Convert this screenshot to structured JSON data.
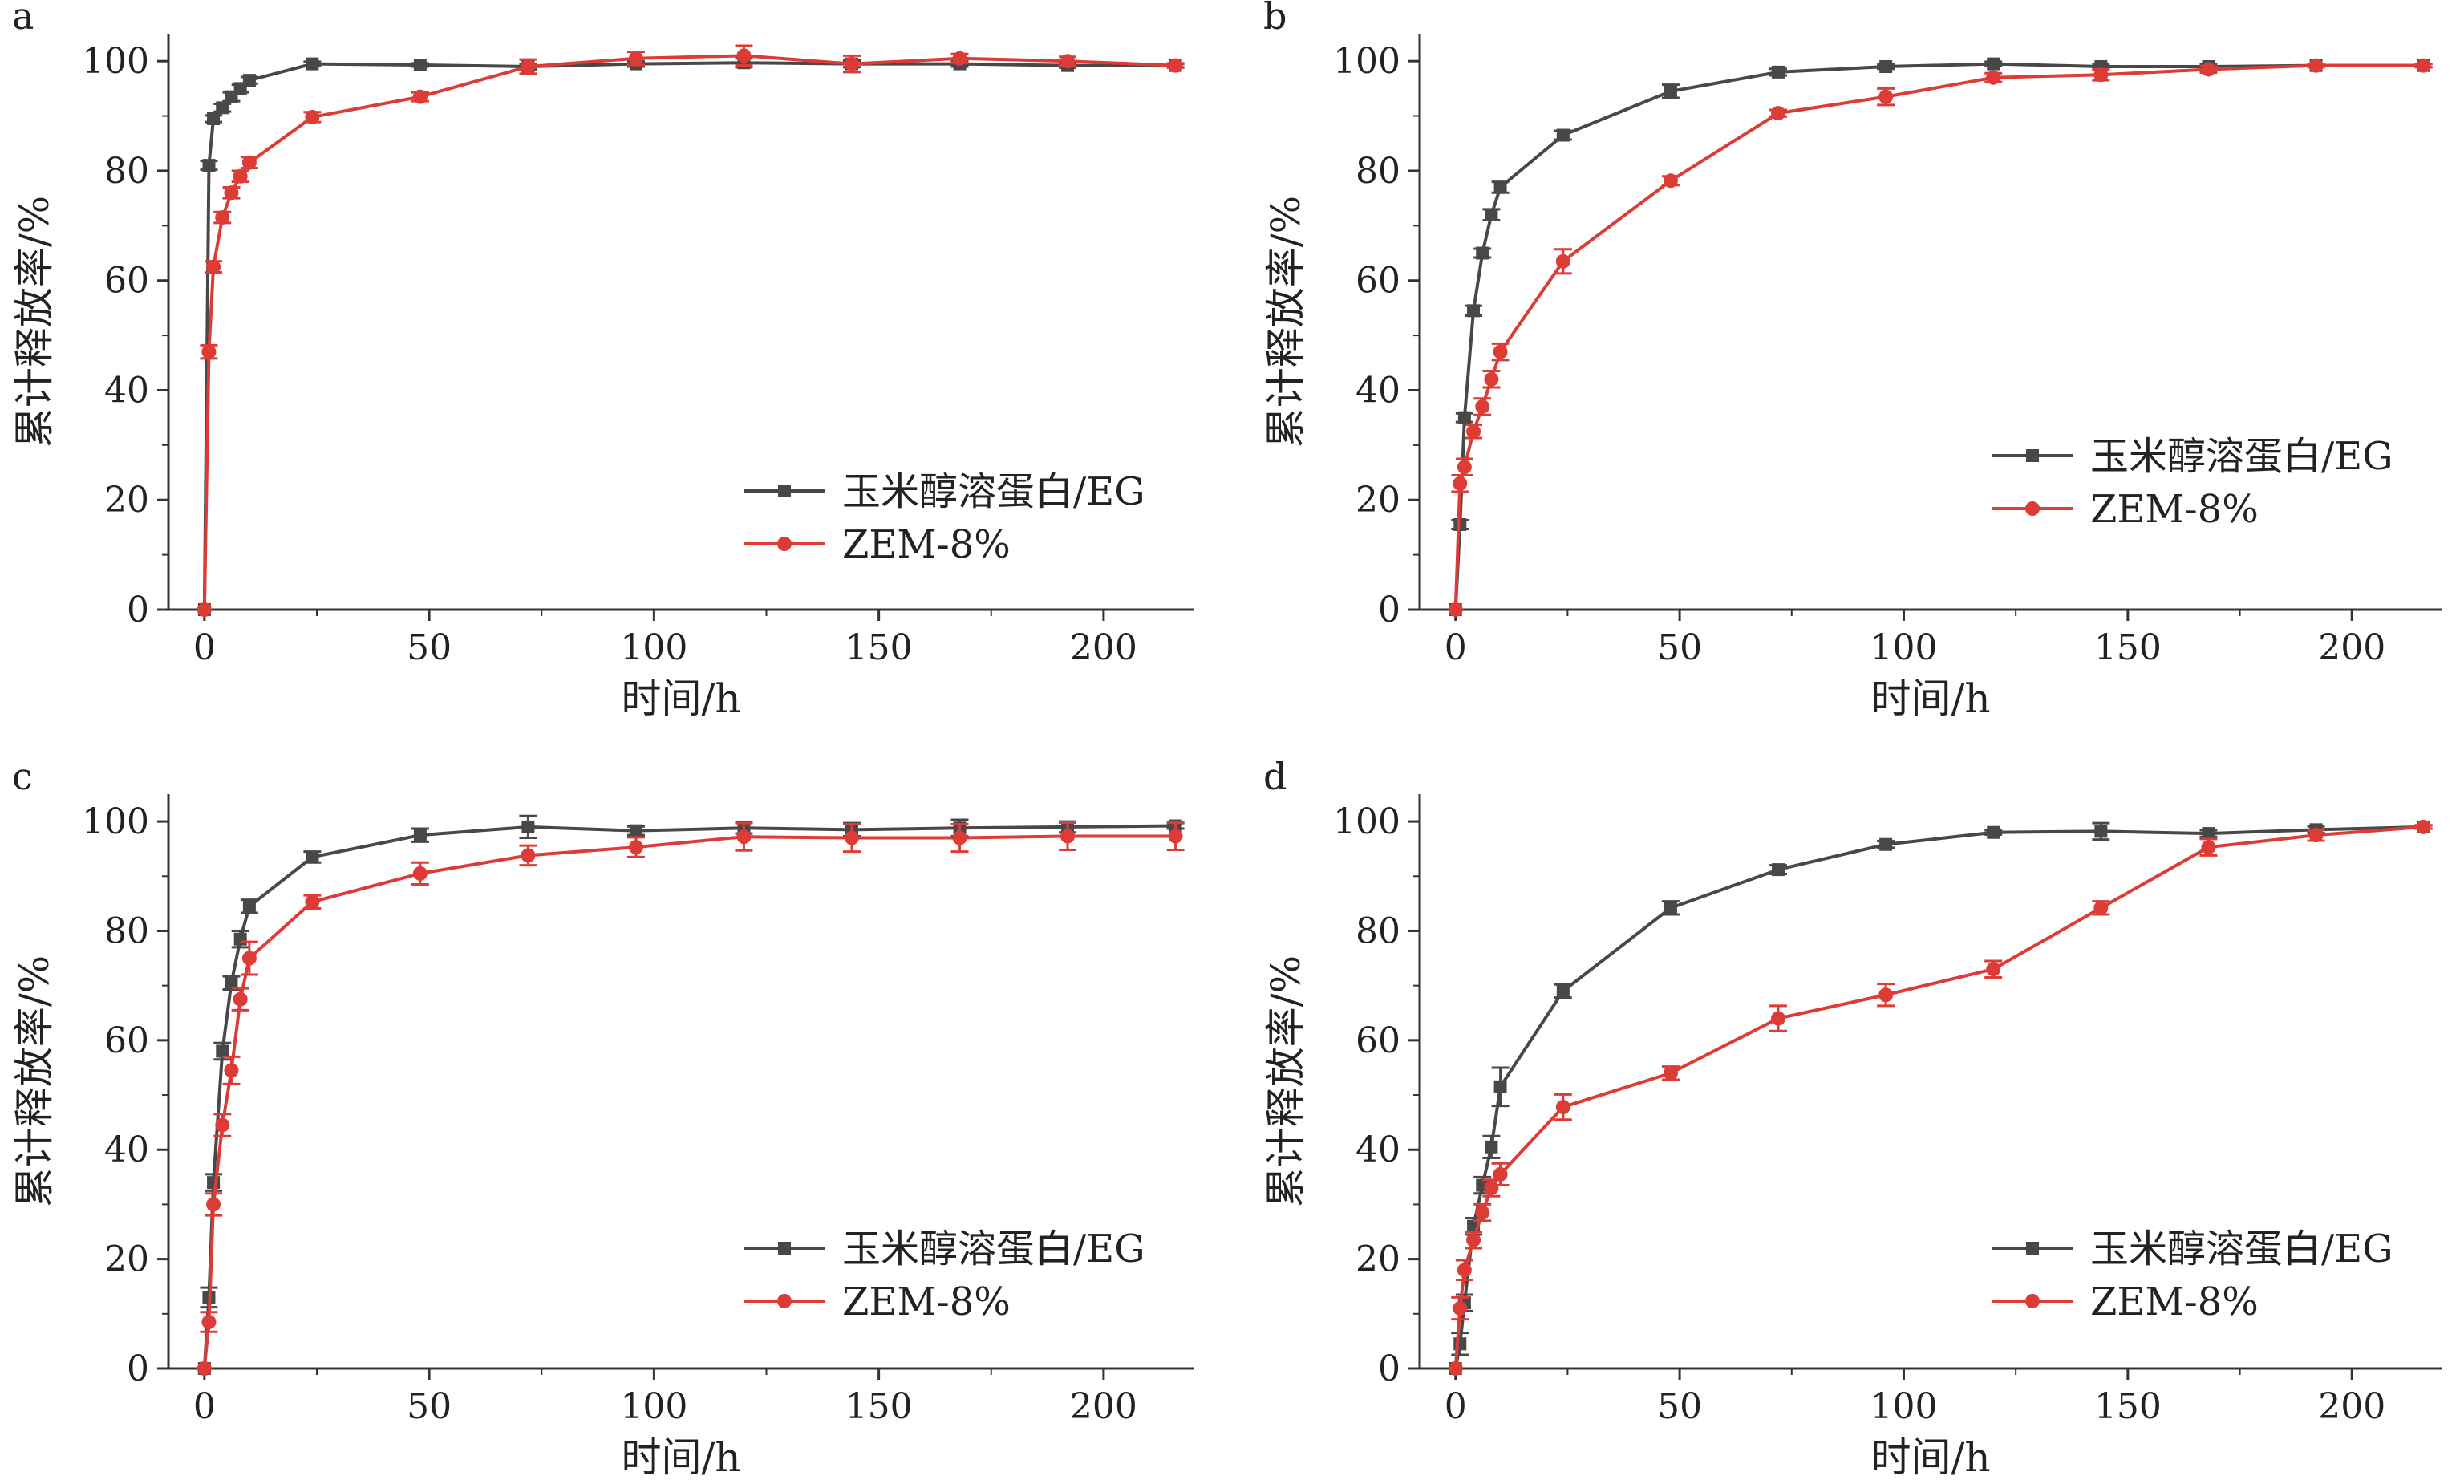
{
  "colors": {
    "series1": "#484848",
    "series2": "#dd3b36",
    "axis": "#333333"
  },
  "chart_data": [
    {
      "panel": "a",
      "type": "line",
      "xlabel": "时间/h",
      "ylabel": "累计释放率/%",
      "xlim": [
        -8,
        220
      ],
      "ylim": [
        0,
        105
      ],
      "xticks": [
        0,
        50,
        100,
        150,
        200
      ],
      "yticks": [
        0,
        20,
        40,
        60,
        80,
        100
      ],
      "legend_position": "bottom-right",
      "series": [
        {
          "name": "玉米醇溶蛋白/EG",
          "marker": "square",
          "x": [
            0,
            1,
            2,
            4,
            6,
            8,
            10,
            24,
            48,
            72,
            96,
            120,
            144,
            168,
            192,
            216
          ],
          "y": [
            0,
            81,
            89.5,
            91.5,
            93.5,
            95,
            96.5,
            99.5,
            99.3,
            99,
            99.5,
            99.7,
            99.5,
            99.5,
            99.2,
            99.2
          ],
          "err": [
            0,
            0.8,
            0.6,
            0.7,
            0.8,
            0.7,
            0.6,
            0.4,
            0.3,
            0.5,
            0.5,
            0.8,
            0.6,
            0.5,
            0.4,
            0.3
          ]
        },
        {
          "name": "ZEM-8%",
          "marker": "circle",
          "x": [
            0,
            1,
            2,
            4,
            6,
            8,
            10,
            24,
            48,
            72,
            96,
            120,
            144,
            168,
            192,
            216
          ],
          "y": [
            0,
            47,
            62.5,
            71.5,
            76,
            79,
            81.5,
            89.8,
            93.5,
            99,
            100.5,
            101,
            99.5,
            100.5,
            100,
            99.2
          ],
          "err": [
            0,
            1.2,
            1.0,
            1.0,
            1.0,
            1.0,
            1.0,
            0.9,
            0.8,
            1.3,
            1.2,
            1.8,
            1.5,
            0.8,
            0.8,
            0.4
          ]
        }
      ]
    },
    {
      "panel": "b",
      "type": "line",
      "xlabel": "时间/h",
      "ylabel": "累计释放率/%",
      "xlim": [
        -8,
        220
      ],
      "ylim": [
        0,
        105
      ],
      "xticks": [
        0,
        50,
        100,
        150,
        200
      ],
      "yticks": [
        0,
        20,
        40,
        60,
        80,
        100
      ],
      "legend_position": "right",
      "series": [
        {
          "name": "玉米醇溶蛋白/EG",
          "marker": "square",
          "x": [
            0,
            1,
            2,
            4,
            6,
            8,
            10,
            24,
            48,
            72,
            96,
            120,
            144,
            168,
            192,
            216
          ],
          "y": [
            0,
            15.5,
            35,
            54.5,
            65,
            72,
            77,
            86.5,
            94.5,
            98,
            99,
            99.5,
            99,
            99,
            99.2,
            99.2
          ],
          "err": [
            0,
            0.8,
            0.8,
            0.9,
            0.8,
            1.0,
            1.0,
            0.8,
            1.2,
            0.6,
            0.4,
            0.4,
            0.4,
            0.4,
            0.3,
            0.3
          ]
        },
        {
          "name": "ZEM-8%",
          "marker": "circle",
          "x": [
            0,
            1,
            2,
            4,
            6,
            8,
            10,
            24,
            48,
            72,
            96,
            120,
            144,
            168,
            192,
            216
          ],
          "y": [
            0,
            23,
            26,
            32.5,
            37,
            42,
            47,
            63.5,
            78.2,
            90.5,
            93.5,
            97,
            97.5,
            98.5,
            99.2,
            99.2
          ],
          "err": [
            0,
            1.5,
            1.5,
            1.2,
            1.5,
            1.5,
            1.5,
            2.2,
            0.8,
            0.6,
            1.5,
            0.8,
            1.0,
            0.6,
            0.3,
            0.3
          ]
        }
      ]
    },
    {
      "panel": "c",
      "type": "line",
      "xlabel": "时间/h",
      "ylabel": "累计释放率/%",
      "xlim": [
        -8,
        220
      ],
      "ylim": [
        0,
        105
      ],
      "xticks": [
        0,
        50,
        100,
        150,
        200
      ],
      "yticks": [
        0,
        20,
        40,
        60,
        80,
        100
      ],
      "legend_position": "bottom-right",
      "series": [
        {
          "name": "玉米醇溶蛋白/EG",
          "marker": "square",
          "x": [
            0,
            1,
            2,
            4,
            6,
            8,
            10,
            24,
            48,
            72,
            96,
            120,
            144,
            168,
            192,
            216
          ],
          "y": [
            0,
            13,
            34,
            58,
            70.5,
            78.5,
            84.5,
            93.5,
            97.5,
            99,
            98.3,
            98.8,
            98.5,
            98.8,
            99,
            99.2
          ],
          "err": [
            0,
            1.8,
            1.5,
            1.5,
            1.2,
            1.5,
            1.2,
            1.0,
            1.2,
            2.0,
            0.8,
            1.0,
            1.2,
            1.5,
            1.0,
            0.5
          ]
        },
        {
          "name": "ZEM-8%",
          "marker": "circle",
          "x": [
            0,
            1,
            2,
            4,
            6,
            8,
            10,
            24,
            48,
            72,
            96,
            120,
            144,
            168,
            192,
            216
          ],
          "y": [
            0,
            8.5,
            30,
            44.5,
            54.5,
            67.5,
            75,
            85.3,
            90.5,
            93.8,
            95.3,
            97.2,
            97,
            97,
            97.3,
            97.3
          ],
          "err": [
            0,
            1.8,
            2.0,
            2.0,
            2.5,
            2.0,
            3.0,
            1.2,
            2.0,
            1.8,
            1.8,
            2.5,
            2.5,
            2.5,
            2.5,
            2.5
          ]
        }
      ]
    },
    {
      "panel": "d",
      "type": "line",
      "xlabel": "时间/h",
      "ylabel": "累计释放率/%",
      "xlim": [
        -8,
        220
      ],
      "ylim": [
        0,
        105
      ],
      "xticks": [
        0,
        50,
        100,
        150,
        200
      ],
      "yticks": [
        0,
        20,
        40,
        60,
        80,
        100
      ],
      "legend_position": "bottom-right",
      "series": [
        {
          "name": "玉米醇溶蛋白/EG",
          "marker": "square",
          "x": [
            0,
            1,
            2,
            4,
            6,
            8,
            10,
            24,
            48,
            72,
            96,
            120,
            144,
            168,
            192,
            216
          ],
          "y": [
            0,
            4.5,
            12,
            26,
            33.5,
            40.5,
            51.5,
            69,
            84.2,
            91.2,
            95.8,
            98,
            98.2,
            97.8,
            98.5,
            99
          ],
          "err": [
            0,
            2.0,
            1.5,
            1.5,
            1.5,
            2.0,
            3.5,
            1.2,
            1.2,
            0.8,
            0.6,
            0.4,
            1.5,
            0.6,
            0.6,
            0.3
          ]
        },
        {
          "name": "ZEM-8%",
          "marker": "circle",
          "x": [
            0,
            1,
            2,
            4,
            6,
            8,
            10,
            24,
            48,
            72,
            96,
            120,
            144,
            168,
            192,
            216
          ],
          "y": [
            0,
            11,
            18,
            23.5,
            28.5,
            33,
            35.5,
            47.8,
            54,
            64,
            68.3,
            73,
            84.2,
            95.3,
            97.5,
            99
          ],
          "err": [
            0,
            2.0,
            1.8,
            1.5,
            1.5,
            1.5,
            2.0,
            2.3,
            1.2,
            2.3,
            2.0,
            1.5,
            1.2,
            1.5,
            1.0,
            0.3
          ]
        }
      ]
    }
  ]
}
